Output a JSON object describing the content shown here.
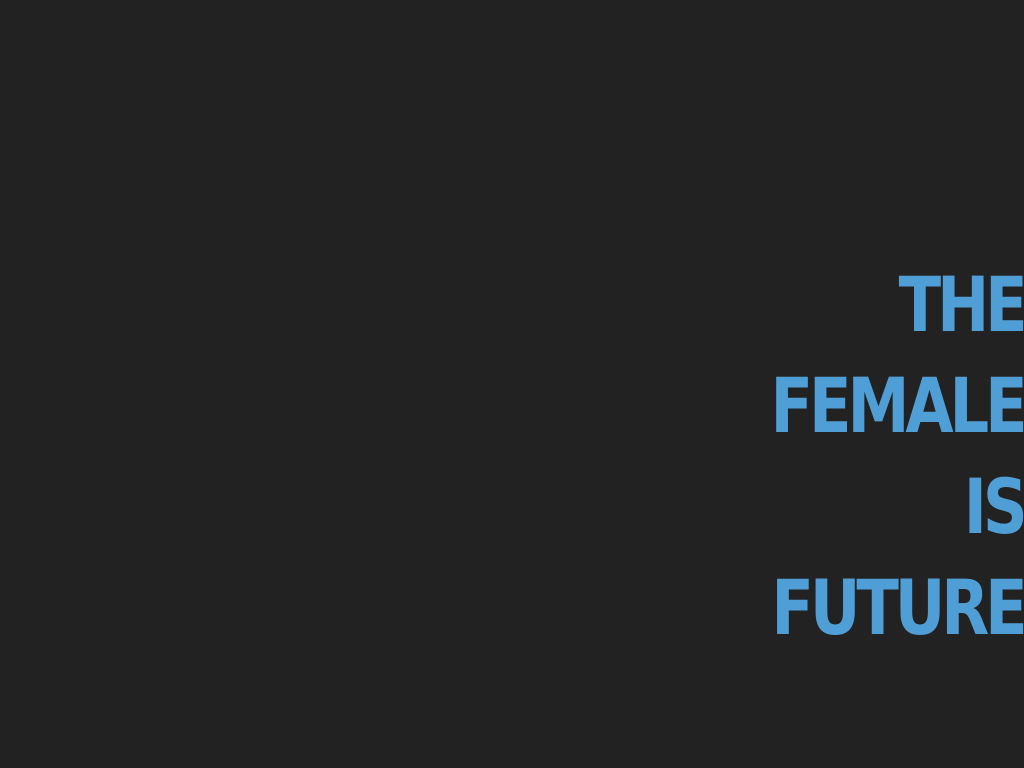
{
  "slide": {
    "background": "#222222",
    "accent": "#4f9fd6",
    "lines": [
      "THE",
      "FEMALE",
      "IS",
      "FUTURE"
    ]
  }
}
